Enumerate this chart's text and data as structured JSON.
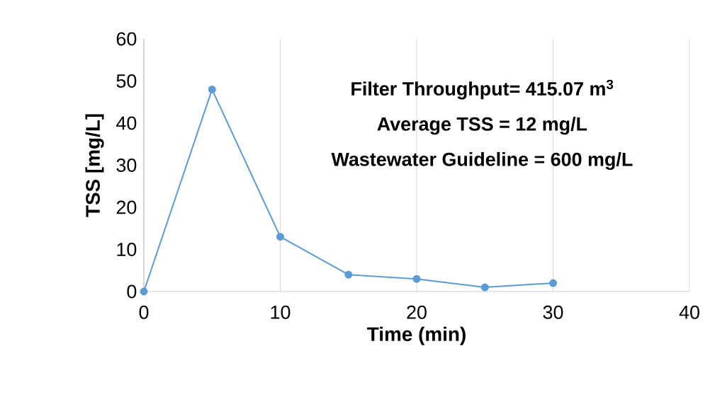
{
  "chart_data": {
    "type": "line",
    "xlabel": "Time (min)",
    "ylabel": "TSS [mg/L]",
    "x": [
      0,
      5,
      10,
      15,
      20,
      25,
      30
    ],
    "series": [
      {
        "color": "#5b9bd5",
        "values": [
          0,
          48,
          13,
          4,
          3,
          1,
          2
        ]
      }
    ],
    "xlim": [
      0,
      40
    ],
    "xticks": [
      0,
      10,
      20,
      30,
      40
    ],
    "ylim": [
      0,
      60
    ],
    "yticks": [
      0,
      10,
      20,
      30,
      40,
      50,
      60
    ],
    "grid": "x",
    "marker": "circle",
    "line_style": "solid",
    "annotations": [
      "Filter Throughput= 415.07 m$^{3}$",
      "Average TSS = 12 mg/L",
      "Wastewater Guideline = 600 mg/L"
    ]
  }
}
